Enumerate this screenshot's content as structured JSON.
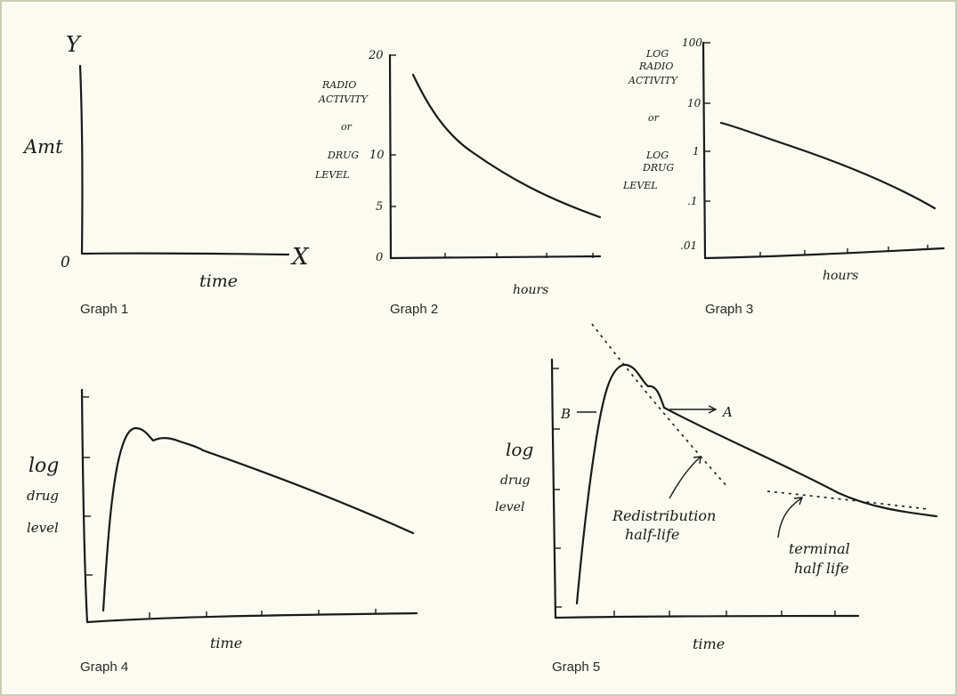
{
  "graph1": {
    "caption": "Graph 1",
    "y_axis_letter": "Y",
    "x_axis_letter": "X",
    "y_label": "Amt",
    "origin_label": "0",
    "x_label": "time"
  },
  "graph2": {
    "caption": "Graph 2",
    "y_label_lines": [
      "RADIO",
      "ACTIVITY",
      "or",
      "DRUG",
      "LEVEL"
    ],
    "y_ticks": [
      "20",
      "10",
      "5",
      "0"
    ],
    "x_label": "hours"
  },
  "graph3": {
    "caption": "Graph 3",
    "y_label_lines": [
      "LOG",
      "RADIO",
      "ACTIVITY",
      "or",
      "LOG",
      "DRUG",
      "LEVEL"
    ],
    "y_ticks": [
      "100",
      "10",
      "1",
      ".1",
      ".01"
    ],
    "x_label": "hours"
  },
  "graph4": {
    "caption": "Graph 4",
    "y_label_lines": [
      "log",
      "drug",
      "level"
    ],
    "x_label": "time"
  },
  "graph5": {
    "caption": "Graph 5",
    "y_label_lines": [
      "log",
      "drug",
      "level"
    ],
    "x_label": "time",
    "marker_left": "B",
    "marker_right": "A",
    "annotation_redistribution": [
      "Redistribution",
      "half-life"
    ],
    "annotation_terminal": [
      "terminal",
      "half life"
    ]
  }
}
